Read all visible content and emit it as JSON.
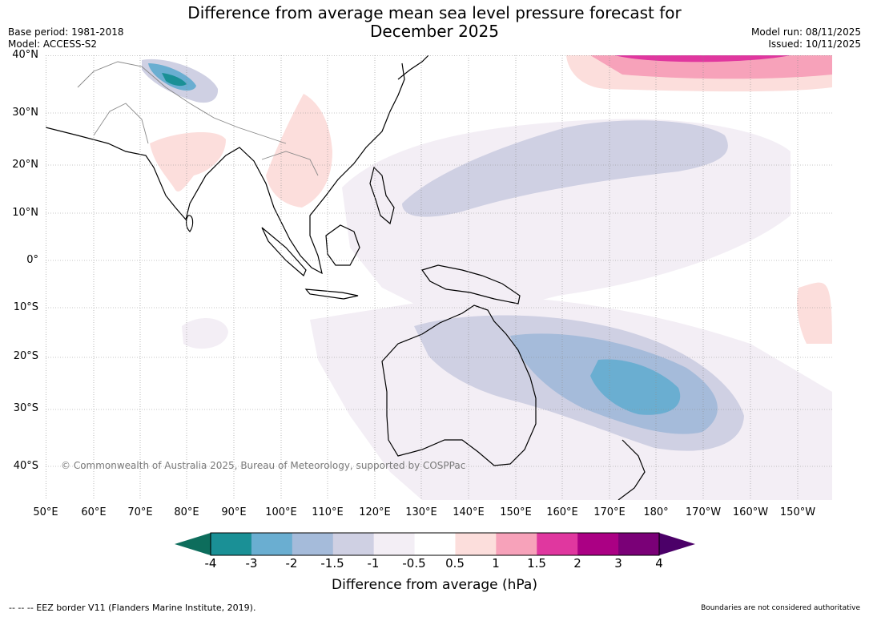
{
  "title_line1": "Difference from average mean sea level pressure forecast for",
  "title_line2": "December 2025",
  "base_period": "Base period: 1981-2018",
  "model": "Model: ACCESS-S2",
  "model_run": "Model run: 08/11/2025",
  "issued": "Issued: 10/11/2025",
  "copyright": "© Commonwealth of Australia 2025, Bureau of Meteorology, supported by COSPPac",
  "lat_labels": [
    "40°N",
    "30°N",
    "20°N",
    "10°N",
    "0°",
    "10°S",
    "20°S",
    "30°S",
    "40°S"
  ],
  "lon_labels": [
    "50°E",
    "60°E",
    "70°E",
    "80°E",
    "90°E",
    "100°E",
    "110°E",
    "120°E",
    "130°E",
    "140°E",
    "150°E",
    "160°E",
    "170°E",
    "180°",
    "170°W",
    "160°W",
    "150°W"
  ],
  "colorbar": {
    "ticks": [
      "-4",
      "-3",
      "-2",
      "-1.5",
      "-1",
      "-0.5",
      "0.5",
      "1",
      "1.5",
      "2",
      "3",
      "4"
    ],
    "colors": [
      "#1a9096",
      "#6aaed1",
      "#a5bbda",
      "#cfd0e3",
      "#f3eef5",
      "#ffffff",
      "#fcdedc",
      "#f7a2ba",
      "#e0379f",
      "#ab0084",
      "#7a0077"
    ],
    "under_color": "#0d6d5c",
    "over_color": "#4b0068",
    "label": "Difference from average (hPa)"
  },
  "footnote": "--  --  -- EEZ border V11 (Flanders Marine Institute, 2019).",
  "disclaimer": "Boundaries are not considered authoritative"
}
